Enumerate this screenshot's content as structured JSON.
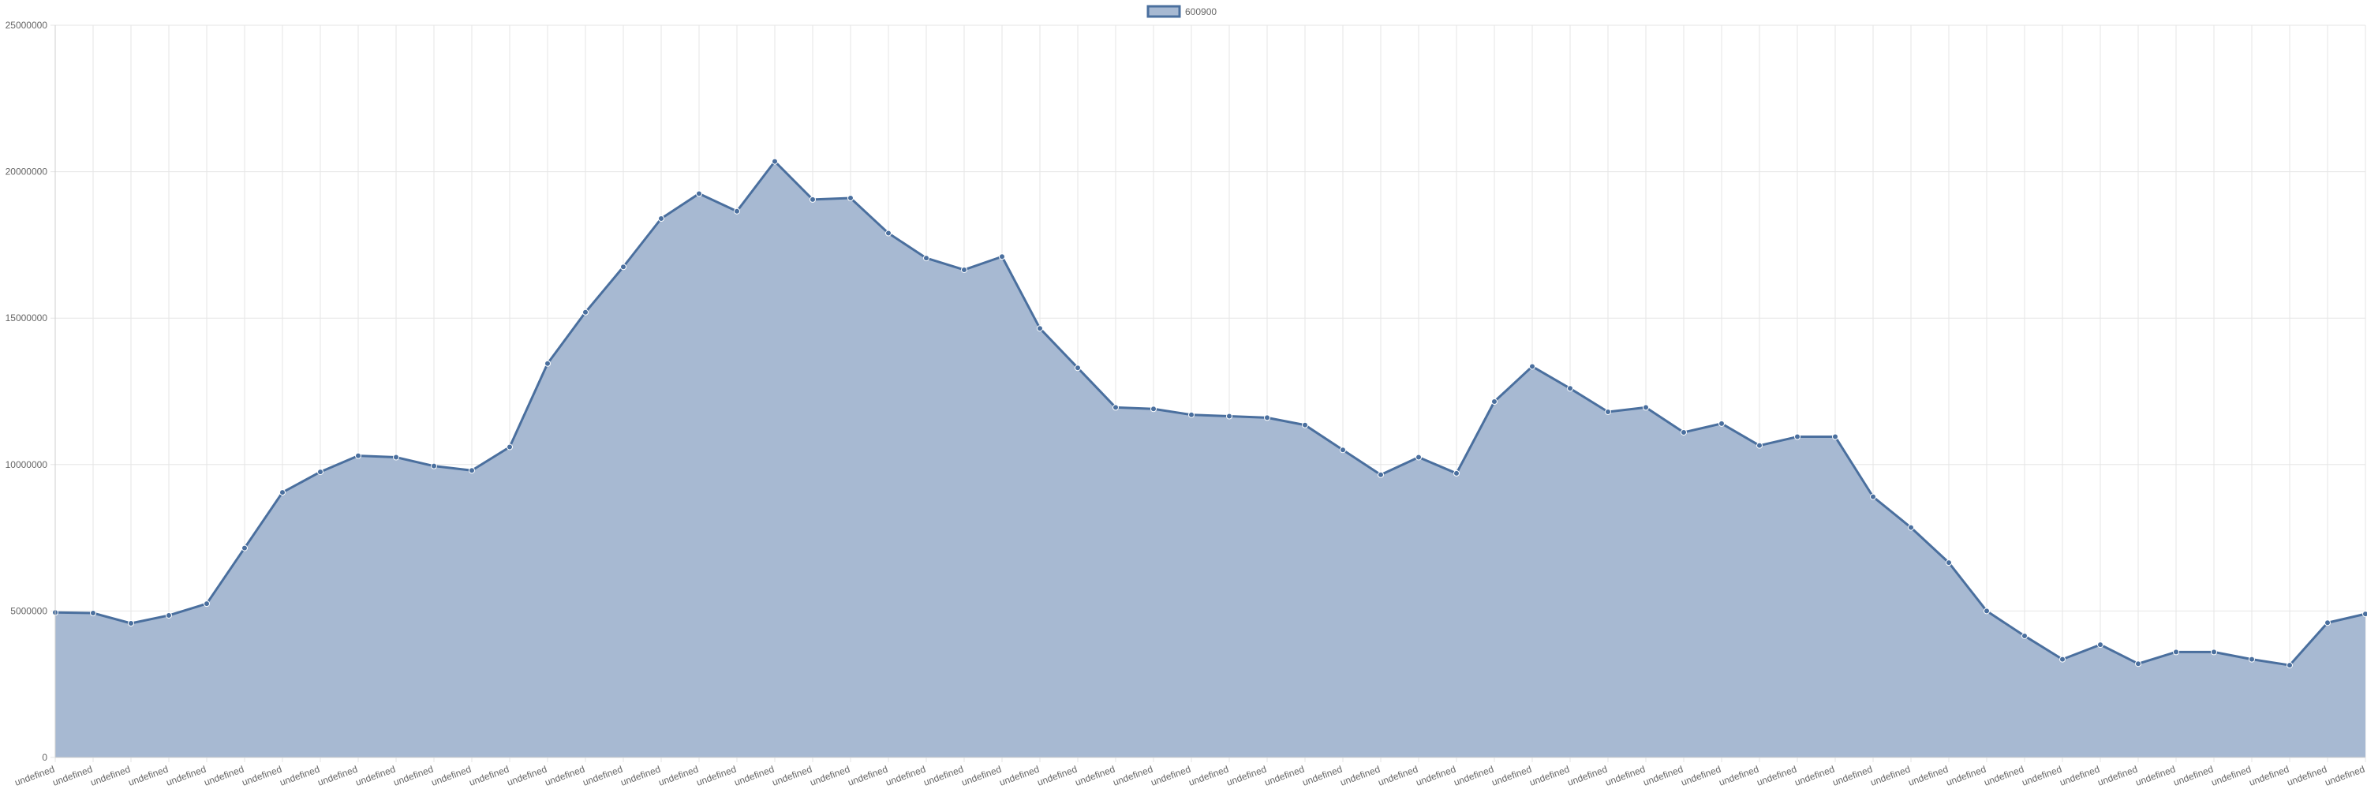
{
  "chart_data": {
    "type": "area",
    "title": "",
    "xlabel": "",
    "ylabel": "",
    "ylim": [
      0,
      25000000
    ],
    "y_ticks": [
      "0",
      "5000000",
      "10000000",
      "15000000",
      "20000000",
      "25000000"
    ],
    "grid": true,
    "legend_position": "top-center",
    "categories": [
      "undefined",
      "undefined",
      "undefined",
      "undefined",
      "undefined",
      "undefined",
      "undefined",
      "undefined",
      "undefined",
      "undefined",
      "undefined",
      "undefined",
      "undefined",
      "undefined",
      "undefined",
      "undefined",
      "undefined",
      "undefined",
      "undefined",
      "undefined",
      "undefined",
      "undefined",
      "undefined",
      "undefined",
      "undefined",
      "undefined",
      "undefined",
      "undefined",
      "undefined",
      "undefined",
      "undefined",
      "undefined",
      "undefined",
      "undefined",
      "undefined",
      "undefined",
      "undefined",
      "undefined",
      "undefined",
      "undefined",
      "undefined",
      "undefined",
      "undefined",
      "undefined",
      "undefined",
      "undefined",
      "undefined",
      "undefined",
      "undefined",
      "undefined",
      "undefined",
      "undefined",
      "undefined",
      "undefined",
      "undefined",
      "undefined",
      "undefined",
      "undefined",
      "undefined",
      "undefined",
      "undefined",
      "undefined"
    ],
    "series": [
      {
        "name": "600900",
        "color": "#4a6f9e",
        "fill": "#a7b9d2",
        "values": [
          4950000,
          4930000,
          4580000,
          4850000,
          5250000,
          7150000,
          9050000,
          9750000,
          10300000,
          10250000,
          9950000,
          9800000,
          10600000,
          13450000,
          15200000,
          16750000,
          18400000,
          19250000,
          18650000,
          20350000,
          19050000,
          19100000,
          17900000,
          17050000,
          16650000,
          17100000,
          14650000,
          13300000,
          11950000,
          11900000,
          11700000,
          11650000,
          11600000,
          11350000,
          10500000,
          9650000,
          10250000,
          9700000,
          12150000,
          13350000,
          12600000,
          11800000,
          11950000,
          11100000,
          11400000,
          10650000,
          10950000,
          10950000,
          8900000,
          7850000,
          6650000,
          5000000,
          4150000,
          3350000,
          3850000,
          3200000,
          3600000,
          3600000,
          3350000,
          3150000,
          4600000,
          4900000
        ]
      }
    ]
  }
}
